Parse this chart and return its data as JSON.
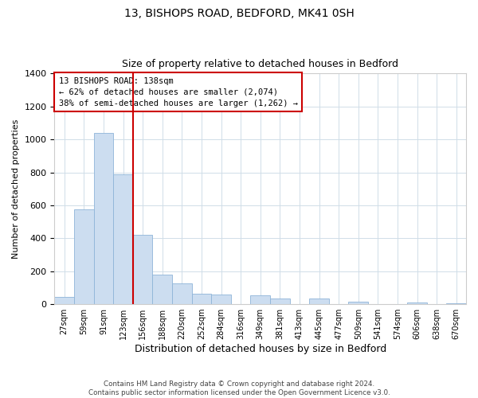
{
  "title1": "13, BISHOPS ROAD, BEDFORD, MK41 0SH",
  "title2": "Size of property relative to detached houses in Bedford",
  "xlabel": "Distribution of detached houses by size in Bedford",
  "ylabel": "Number of detached properties",
  "bar_labels": [
    "27sqm",
    "59sqm",
    "91sqm",
    "123sqm",
    "156sqm",
    "188sqm",
    "220sqm",
    "252sqm",
    "284sqm",
    "316sqm",
    "349sqm",
    "381sqm",
    "413sqm",
    "445sqm",
    "477sqm",
    "509sqm",
    "541sqm",
    "574sqm",
    "606sqm",
    "638sqm",
    "670sqm"
  ],
  "bar_values": [
    45,
    575,
    1040,
    790,
    420,
    180,
    125,
    65,
    60,
    0,
    55,
    35,
    0,
    35,
    0,
    15,
    0,
    0,
    12,
    0,
    5
  ],
  "bar_color": "#ccddf0",
  "bar_edge_color": "#8eb4d8",
  "vline_color": "#cc0000",
  "vline_pos": 3.5,
  "annotation_text_line1": "13 BISHOPS ROAD: 138sqm",
  "annotation_text_line2": "← 62% of detached houses are smaller (2,074)",
  "annotation_text_line3": "38% of semi-detached houses are larger (1,262) →",
  "ylim": [
    0,
    1400
  ],
  "yticks": [
    0,
    200,
    400,
    600,
    800,
    1000,
    1200,
    1400
  ],
  "footnote": "Contains HM Land Registry data © Crown copyright and database right 2024.\nContains public sector information licensed under the Open Government Licence v3.0.",
  "bg_color": "#ffffff",
  "grid_color": "#d0dde8"
}
